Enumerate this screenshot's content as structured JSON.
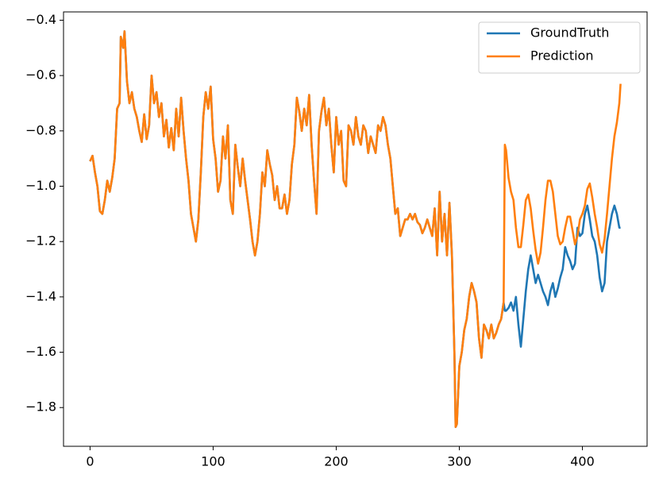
{
  "chart_data": {
    "type": "line",
    "x": [
      0,
      2,
      4,
      6,
      8,
      10,
      12,
      14,
      16,
      18,
      20,
      22,
      24,
      25,
      27,
      28,
      30,
      32,
      34,
      36,
      38,
      40,
      42,
      44,
      46,
      48,
      50,
      52,
      54,
      56,
      58,
      60,
      62,
      64,
      66,
      68,
      70,
      72,
      74,
      76,
      78,
      80,
      82,
      84,
      86,
      88,
      90,
      92,
      94,
      96,
      98,
      100,
      102,
      104,
      106,
      108,
      110,
      112,
      114,
      116,
      118,
      120,
      122,
      124,
      126,
      128,
      130,
      132,
      134,
      136,
      138,
      140,
      142,
      144,
      146,
      148,
      150,
      152,
      154,
      156,
      158,
      160,
      162,
      164,
      166,
      168,
      170,
      172,
      174,
      176,
      178,
      180,
      182,
      184,
      186,
      188,
      190,
      192,
      194,
      196,
      198,
      200,
      202,
      204,
      206,
      208,
      210,
      212,
      214,
      216,
      218,
      220,
      222,
      224,
      226,
      228,
      230,
      232,
      234,
      236,
      238,
      240,
      242,
      244,
      246,
      248,
      250,
      252,
      254,
      256,
      258,
      260,
      262,
      264,
      266,
      268,
      270,
      272,
      274,
      276,
      278,
      280,
      282,
      284,
      286,
      288,
      290,
      292,
      294,
      296,
      297,
      298,
      300,
      302,
      304,
      306,
      308,
      310,
      312,
      314,
      316,
      318,
      320,
      322,
      324,
      326,
      328,
      330,
      332,
      334,
      336,
      337,
      338,
      340,
      342,
      344,
      346,
      348,
      350,
      352,
      354,
      356,
      358,
      360,
      362,
      364,
      366,
      368,
      370,
      372,
      374,
      376,
      378,
      380,
      382,
      384,
      386,
      388,
      390,
      392,
      394,
      396,
      398,
      400,
      402,
      404,
      406,
      408,
      410,
      412,
      414,
      416,
      418,
      420,
      422,
      424,
      426,
      428,
      430,
      431
    ],
    "series": [
      {
        "name": "GroundTruth",
        "color": "#1f77b4",
        "values": [
          -0.91,
          -0.89,
          -0.95,
          -1.0,
          -1.09,
          -1.1,
          -1.05,
          -0.98,
          -1.02,
          -0.97,
          -0.9,
          -0.72,
          -0.7,
          -0.46,
          -0.5,
          -0.44,
          -0.62,
          -0.7,
          -0.66,
          -0.72,
          -0.75,
          -0.8,
          -0.84,
          -0.74,
          -0.83,
          -0.78,
          -0.6,
          -0.7,
          -0.66,
          -0.75,
          -0.7,
          -0.82,
          -0.76,
          -0.86,
          -0.79,
          -0.87,
          -0.72,
          -0.82,
          -0.68,
          -0.8,
          -0.9,
          -0.98,
          -1.1,
          -1.15,
          -1.2,
          -1.12,
          -0.95,
          -0.75,
          -0.66,
          -0.72,
          -0.64,
          -0.83,
          -0.9,
          -1.02,
          -0.98,
          -0.82,
          -0.9,
          -0.78,
          -1.05,
          -1.1,
          -0.85,
          -0.93,
          -1.0,
          -0.9,
          -0.98,
          -1.05,
          -1.12,
          -1.2,
          -1.25,
          -1.2,
          -1.1,
          -0.95,
          -1.0,
          -0.87,
          -0.92,
          -0.96,
          -1.05,
          -1.0,
          -1.08,
          -1.08,
          -1.03,
          -1.1,
          -1.05,
          -0.92,
          -0.85,
          -0.68,
          -0.73,
          -0.8,
          -0.72,
          -0.78,
          -0.67,
          -0.85,
          -0.98,
          -1.1,
          -0.8,
          -0.73,
          -0.68,
          -0.78,
          -0.72,
          -0.85,
          -0.95,
          -0.75,
          -0.85,
          -0.8,
          -0.98,
          -1.0,
          -0.78,
          -0.8,
          -0.85,
          -0.75,
          -0.82,
          -0.85,
          -0.78,
          -0.8,
          -0.88,
          -0.82,
          -0.85,
          -0.88,
          -0.78,
          -0.8,
          -0.75,
          -0.78,
          -0.85,
          -0.9,
          -1.0,
          -1.1,
          -1.08,
          -1.18,
          -1.15,
          -1.12,
          -1.12,
          -1.1,
          -1.12,
          -1.1,
          -1.13,
          -1.14,
          -1.17,
          -1.15,
          -1.12,
          -1.15,
          -1.18,
          -1.08,
          -1.25,
          -1.02,
          -1.2,
          -1.1,
          -1.25,
          -1.06,
          -1.25,
          -1.6,
          -1.87,
          -1.86,
          -1.65,
          -1.6,
          -1.52,
          -1.48,
          -1.4,
          -1.35,
          -1.38,
          -1.42,
          -1.55,
          -1.62,
          -1.5,
          -1.52,
          -1.55,
          -1.5,
          -1.55,
          -1.53,
          -1.5,
          -1.48,
          -1.42,
          -1.45,
          -1.45,
          -1.44,
          -1.42,
          -1.45,
          -1.4,
          -1.5,
          -1.58,
          -1.48,
          -1.38,
          -1.3,
          -1.25,
          -1.3,
          -1.35,
          -1.32,
          -1.35,
          -1.38,
          -1.4,
          -1.43,
          -1.38,
          -1.35,
          -1.4,
          -1.37,
          -1.33,
          -1.3,
          -1.22,
          -1.25,
          -1.27,
          -1.3,
          -1.28,
          -1.15,
          -1.18,
          -1.17,
          -1.1,
          -1.07,
          -1.12,
          -1.18,
          -1.2,
          -1.25,
          -1.33,
          -1.38,
          -1.35,
          -1.2,
          -1.15,
          -1.1,
          -1.07,
          -1.1,
          -1.15,
          -1.15
        ]
      },
      {
        "name": "Prediction",
        "color": "#ff7f0e",
        "values": [
          -0.91,
          -0.89,
          -0.95,
          -1.0,
          -1.09,
          -1.1,
          -1.05,
          -0.98,
          -1.02,
          -0.97,
          -0.9,
          -0.72,
          -0.7,
          -0.46,
          -0.5,
          -0.44,
          -0.62,
          -0.7,
          -0.66,
          -0.72,
          -0.75,
          -0.8,
          -0.84,
          -0.74,
          -0.83,
          -0.78,
          -0.6,
          -0.7,
          -0.66,
          -0.75,
          -0.7,
          -0.82,
          -0.76,
          -0.86,
          -0.79,
          -0.87,
          -0.72,
          -0.82,
          -0.68,
          -0.8,
          -0.9,
          -0.98,
          -1.1,
          -1.15,
          -1.2,
          -1.12,
          -0.95,
          -0.75,
          -0.66,
          -0.72,
          -0.64,
          -0.83,
          -0.9,
          -1.02,
          -0.98,
          -0.82,
          -0.9,
          -0.78,
          -1.05,
          -1.1,
          -0.85,
          -0.93,
          -1.0,
          -0.9,
          -0.98,
          -1.05,
          -1.12,
          -1.2,
          -1.25,
          -1.2,
          -1.1,
          -0.95,
          -1.0,
          -0.87,
          -0.92,
          -0.96,
          -1.05,
          -1.0,
          -1.08,
          -1.08,
          -1.03,
          -1.1,
          -1.05,
          -0.92,
          -0.85,
          -0.68,
          -0.73,
          -0.8,
          -0.72,
          -0.78,
          -0.67,
          -0.85,
          -0.98,
          -1.1,
          -0.8,
          -0.73,
          -0.68,
          -0.78,
          -0.72,
          -0.85,
          -0.95,
          -0.75,
          -0.85,
          -0.8,
          -0.98,
          -1.0,
          -0.78,
          -0.8,
          -0.85,
          -0.75,
          -0.82,
          -0.85,
          -0.78,
          -0.8,
          -0.88,
          -0.82,
          -0.85,
          -0.88,
          -0.78,
          -0.8,
          -0.75,
          -0.78,
          -0.85,
          -0.9,
          -1.0,
          -1.1,
          -1.08,
          -1.18,
          -1.15,
          -1.12,
          -1.12,
          -1.1,
          -1.12,
          -1.1,
          -1.13,
          -1.14,
          -1.17,
          -1.15,
          -1.12,
          -1.15,
          -1.18,
          -1.08,
          -1.25,
          -1.02,
          -1.2,
          -1.1,
          -1.25,
          -1.06,
          -1.25,
          -1.6,
          -1.87,
          -1.86,
          -1.65,
          -1.6,
          -1.52,
          -1.48,
          -1.4,
          -1.35,
          -1.38,
          -1.42,
          -1.55,
          -1.62,
          -1.5,
          -1.52,
          -1.55,
          -1.5,
          -1.55,
          -1.53,
          -1.5,
          -1.48,
          -1.42,
          -0.85,
          -0.87,
          -0.97,
          -1.02,
          -1.05,
          -1.15,
          -1.22,
          -1.22,
          -1.14,
          -1.05,
          -1.03,
          -1.08,
          -1.16,
          -1.23,
          -1.28,
          -1.24,
          -1.15,
          -1.05,
          -0.98,
          -0.98,
          -1.02,
          -1.1,
          -1.18,
          -1.21,
          -1.2,
          -1.15,
          -1.11,
          -1.11,
          -1.16,
          -1.21,
          -1.18,
          -1.12,
          -1.1,
          -1.07,
          -1.01,
          -0.99,
          -1.04,
          -1.1,
          -1.15,
          -1.21,
          -1.24,
          -1.19,
          -1.1,
          -1.0,
          -0.9,
          -0.82,
          -0.77,
          -0.7,
          -0.63
        ]
      }
    ],
    "xlim": [
      -21.55,
      452.55
    ],
    "xticks": [
      0,
      100,
      200,
      300,
      400
    ],
    "ylim": [
      -1.94,
      -0.37
    ],
    "yticks": [
      {
        "value": -1.8,
        "label": "−1.8"
      },
      {
        "value": -1.6,
        "label": "−1.6"
      },
      {
        "value": -1.4,
        "label": "−1.4"
      },
      {
        "value": -1.2,
        "label": "−1.2"
      },
      {
        "value": -1.0,
        "label": "−1.0"
      },
      {
        "value": -0.8,
        "label": "−0.8"
      },
      {
        "value": -0.6,
        "label": "−0.6"
      },
      {
        "value": -0.4,
        "label": "−0.4"
      }
    ],
    "grid": false,
    "legend": "upper right"
  }
}
